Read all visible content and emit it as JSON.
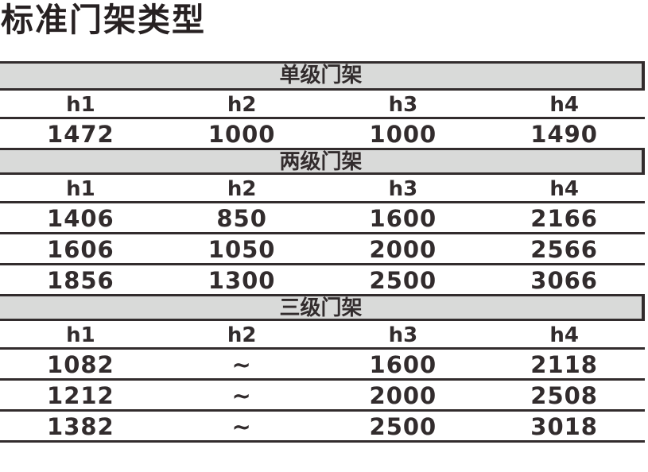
{
  "page_title": "标准门架类型",
  "colors": {
    "band_background": "#d9dad9",
    "border": "#322c2d",
    "text": "#322c2d",
    "title_text": "#272122",
    "page_background": "#ffffff"
  },
  "table": {
    "sections": [
      {
        "label": "单级门架",
        "headers": [
          "h1",
          "h2",
          "h3",
          "h4"
        ],
        "rows": [
          [
            "1472",
            "1000",
            "1000",
            "1490"
          ]
        ]
      },
      {
        "label": "两级门架",
        "headers": [
          "h1",
          "h2",
          "h3",
          "h4"
        ],
        "rows": [
          [
            "1406",
            "850",
            "1600",
            "2166"
          ],
          [
            "1606",
            "1050",
            "2000",
            "2566"
          ],
          [
            "1856",
            "1300",
            "2500",
            "3066"
          ]
        ]
      },
      {
        "label": "三级门架",
        "headers": [
          "h1",
          "h2",
          "h3",
          "h4"
        ],
        "rows": [
          [
            "1082",
            "~",
            "1600",
            "2118"
          ],
          [
            "1212",
            "~",
            "2000",
            "2508"
          ],
          [
            "1382",
            "~",
            "2500",
            "3018"
          ]
        ]
      }
    ]
  },
  "chart_data": {
    "type": "table",
    "title": "标准门架类型",
    "sections": [
      {
        "name": "单级门架",
        "columns": [
          "h1",
          "h2",
          "h3",
          "h4"
        ],
        "rows": [
          [
            1472,
            1000,
            1000,
            1490
          ]
        ]
      },
      {
        "name": "两级门架",
        "columns": [
          "h1",
          "h2",
          "h3",
          "h4"
        ],
        "rows": [
          [
            1406,
            850,
            1600,
            2166
          ],
          [
            1606,
            1050,
            2000,
            2566
          ],
          [
            1856,
            1300,
            2500,
            3066
          ]
        ]
      },
      {
        "name": "三级门架",
        "columns": [
          "h1",
          "h2",
          "h3",
          "h4"
        ],
        "rows": [
          [
            1082,
            null,
            1600,
            2118
          ],
          [
            1212,
            null,
            2000,
            2508
          ],
          [
            1382,
            null,
            2500,
            3018
          ]
        ],
        "note": "h2 values shown as ~"
      }
    ]
  }
}
